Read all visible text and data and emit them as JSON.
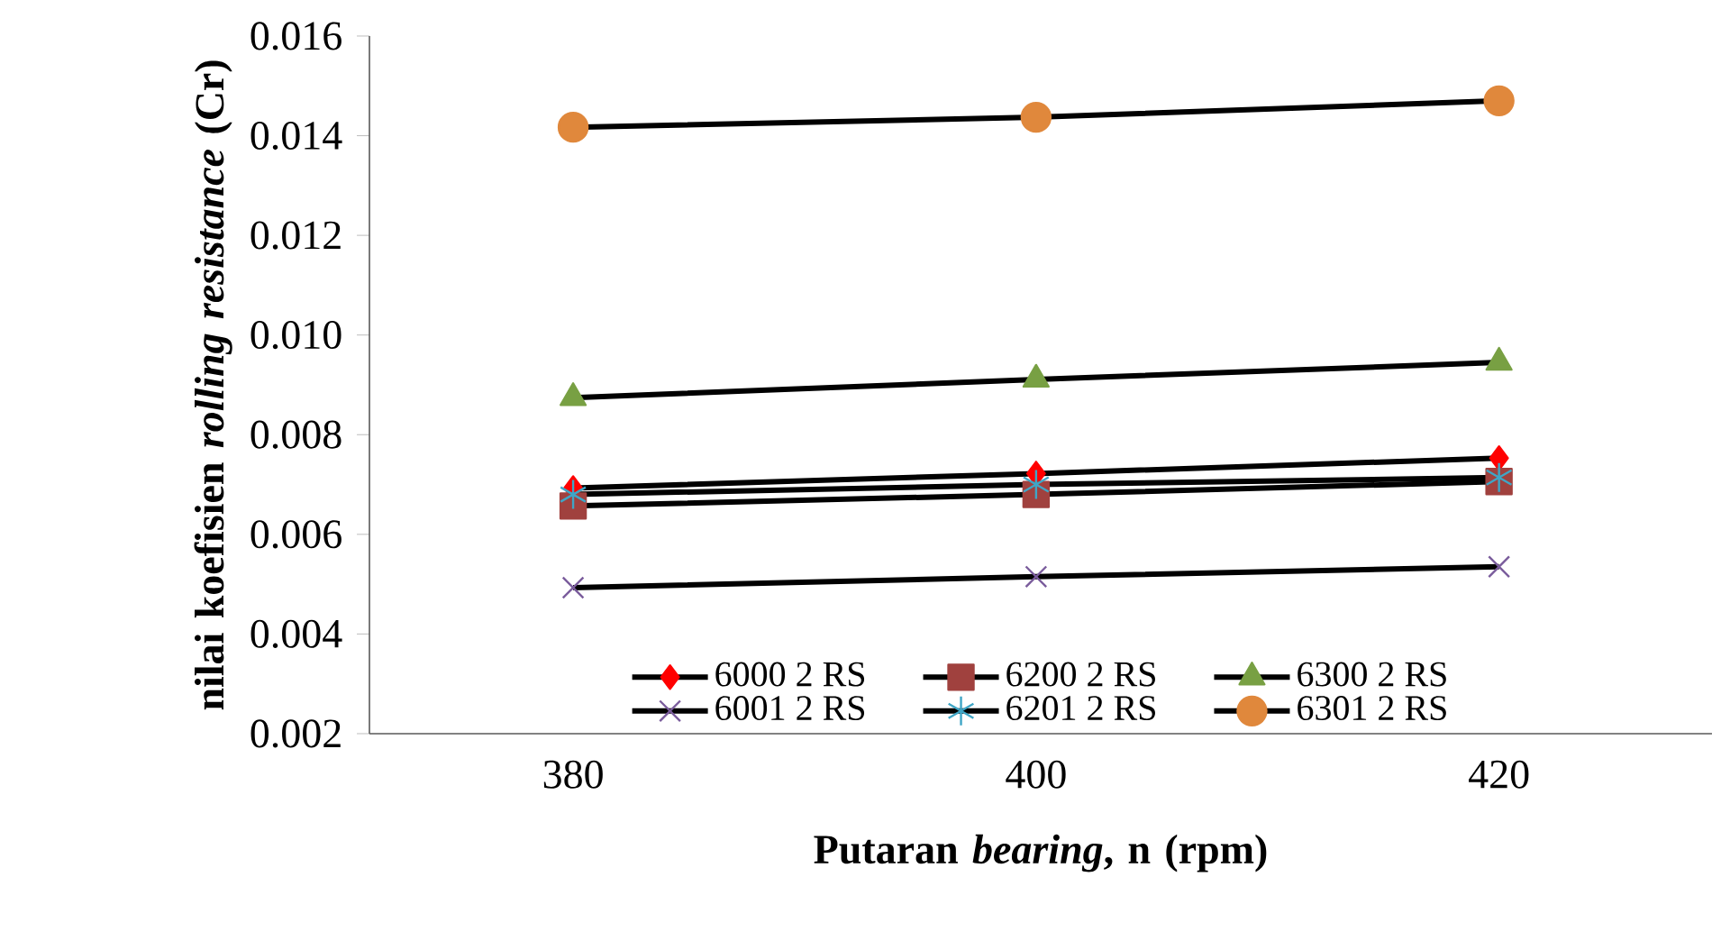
{
  "chart_data": {
    "type": "line",
    "xlabel": "Putaran *bearing*, n (rpm)",
    "ylabel": "nilai  koefisien *rolling resistance* (Cr)",
    "categories": [
      "380",
      "400",
      "420"
    ],
    "series": [
      {
        "name": "6000 2 RS",
        "color": "#ff0000",
        "marker": "diamond",
        "values": [
          0.00693,
          0.00722,
          0.00753
        ]
      },
      {
        "name": "6200 2 RS",
        "color": "#a0413e",
        "marker": "square",
        "values": [
          0.00657,
          0.0068,
          0.00706
        ]
      },
      {
        "name": "6300  2 RS",
        "color": "#78a043",
        "marker": "triangle",
        "values": [
          0.00874,
          0.00911,
          0.00945
        ]
      },
      {
        "name": "6001  2 RS",
        "color": "#7a5c9c",
        "marker": "cross",
        "values": [
          0.00493,
          0.00515,
          0.00535
        ]
      },
      {
        "name": "6201  2 RS",
        "color": "#3fa6c6",
        "marker": "cross",
        "values": [
          0.0068,
          0.007,
          0.00714
        ]
      },
      {
        "name": "6301  2 RS",
        "color": "#e0883c",
        "marker": "circle",
        "values": [
          0.01417,
          0.01437,
          0.0147
        ]
      }
    ],
    "ylim": [
      0.002,
      0.016
    ],
    "yticks": [
      0.002,
      0.004,
      0.006,
      0.008,
      {
        "value": 0.01,
        "label": "0.010"
      },
      0.012,
      0.014,
      0.016
    ],
    "legend": "bottom",
    "grid": false,
    "line_style": "solid"
  }
}
